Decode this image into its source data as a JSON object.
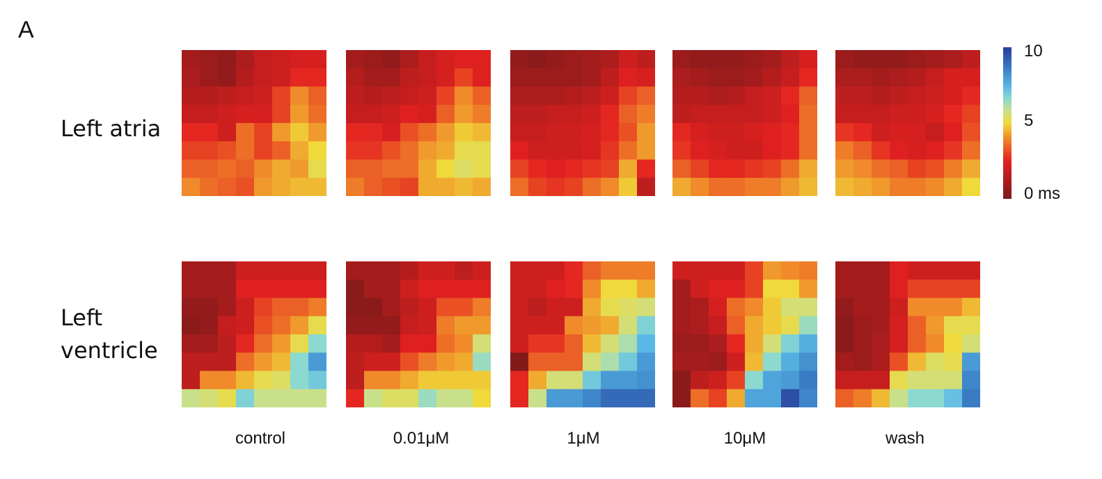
{
  "panel_label": "A",
  "chart_data": {
    "type": "heatmap",
    "title": "",
    "rows": [
      "Left atria",
      "Left ventricle"
    ],
    "columns": [
      "control",
      "0.01μM",
      "1μM",
      "10μM",
      "wash"
    ],
    "colorbar": {
      "min": 0,
      "mid": 5,
      "max": 10,
      "min_label": "0 ms",
      "mid_label": "5",
      "max_label": "10",
      "unit": "ms",
      "colors": [
        "#7a1a1a",
        "#e32020",
        "#f08a2a",
        "#f0d93a",
        "#c9e08a",
        "#8cd9d0",
        "#5ab8e6",
        "#3a7cc4",
        "#2a3d9a"
      ]
    },
    "grids": [
      [
        [
          [
            1,
            0.8,
            0.6,
            1.2,
            1.8,
            2,
            2.2,
            2.2
          ],
          [
            1.2,
            0.8,
            0.6,
            1.4,
            1.8,
            2,
            2.6,
            2.6
          ],
          [
            1.4,
            1.4,
            1.6,
            1.8,
            2,
            3,
            4,
            3.4
          ],
          [
            1.8,
            1.8,
            2,
            2.2,
            2.2,
            3,
            4.2,
            3.6
          ],
          [
            2.6,
            2.6,
            2,
            3.6,
            3,
            4.2,
            4.8,
            4.2
          ],
          [
            3,
            3,
            3.2,
            3.6,
            3,
            3.4,
            4.4,
            5
          ],
          [
            3.4,
            3.4,
            3.6,
            3.4,
            4,
            4.4,
            4.2,
            5.2
          ],
          [
            4,
            3.6,
            3.4,
            3.2,
            4.2,
            4.4,
            4.6,
            4.6
          ]
        ],
        [
          [
            1,
            0.8,
            0.6,
            1.2,
            1.8,
            2.2,
            2.4,
            2.4
          ],
          [
            1.4,
            1,
            1,
            1.6,
            1.8,
            2.2,
            3,
            2.4
          ],
          [
            1.6,
            1.4,
            1.6,
            1.8,
            2,
            3,
            4,
            3.4
          ],
          [
            1.8,
            1.8,
            2,
            2.4,
            2.2,
            3.4,
            4.2,
            3.8
          ],
          [
            2.6,
            2.6,
            2.2,
            3.2,
            3.6,
            4.2,
            4.8,
            4.6
          ],
          [
            2.8,
            2.8,
            3.2,
            3.6,
            4.2,
            4.4,
            5.2,
            5.2
          ],
          [
            3.4,
            3.4,
            3.6,
            3.6,
            4.4,
            5,
            5.4,
            5.2
          ],
          [
            3.8,
            3.4,
            3.2,
            3,
            4.4,
            4.4,
            4.6,
            4.4
          ]
        ],
        [
          [
            0.6,
            0.4,
            0.6,
            0.8,
            1,
            1.2,
            2,
            1.6
          ],
          [
            0.8,
            0.8,
            0.8,
            0.8,
            1,
            1.6,
            2.4,
            2.2
          ],
          [
            1.2,
            1.2,
            1.2,
            1.4,
            1.6,
            2,
            3,
            3.4
          ],
          [
            1.6,
            1.6,
            1.8,
            1.8,
            2,
            2.6,
            3.4,
            3.8
          ],
          [
            1.8,
            1.8,
            2,
            2,
            2.2,
            2.6,
            3.2,
            4.2
          ],
          [
            2.4,
            2,
            2,
            2,
            2.2,
            2.8,
            3.6,
            4.2
          ],
          [
            3,
            2.6,
            2.4,
            2.6,
            2.8,
            3,
            4.4,
            2.6
          ],
          [
            3.6,
            3,
            2.8,
            3,
            3.6,
            4,
            4.8,
            1.6
          ]
        ],
        [
          [
            0.8,
            0.6,
            0.6,
            0.6,
            0.8,
            1,
            1.6,
            2.2
          ],
          [
            1.2,
            1,
            0.8,
            0.8,
            1,
            1.4,
            1.8,
            2.6
          ],
          [
            1.4,
            1.4,
            1.2,
            1.4,
            1.8,
            2,
            2.6,
            3.4
          ],
          [
            1.6,
            1.8,
            1.8,
            1.8,
            1.8,
            2,
            2.4,
            3.6
          ],
          [
            2.6,
            2.2,
            2,
            2,
            2.2,
            2.4,
            2.6,
            3.6
          ],
          [
            2.8,
            2.4,
            2.2,
            2,
            2,
            2.4,
            2.6,
            3.6
          ],
          [
            3.4,
            3,
            2.6,
            2.6,
            2.8,
            3,
            3.6,
            4.4
          ],
          [
            4.4,
            4,
            3.6,
            3.6,
            3.8,
            3.8,
            4.2,
            4.6
          ]
        ],
        [
          [
            0.8,
            0.6,
            0.6,
            0.6,
            0.8,
            1,
            1.2,
            1.6
          ],
          [
            1.2,
            1.2,
            1,
            1.2,
            1.4,
            1.8,
            2.2,
            2.2
          ],
          [
            1.6,
            1.6,
            1.4,
            1.6,
            1.8,
            2,
            2.2,
            2.6
          ],
          [
            1.8,
            1.8,
            1.8,
            2,
            2,
            2.2,
            2.6,
            3
          ],
          [
            2.8,
            2.6,
            2,
            2.2,
            2.2,
            1.8,
            2.4,
            3.2
          ],
          [
            3.8,
            3.4,
            2.8,
            2.4,
            2.2,
            2.4,
            2.8,
            3.6
          ],
          [
            4.2,
            4,
            3.6,
            3.4,
            3,
            3.2,
            3.8,
            4.4
          ],
          [
            4.6,
            4.4,
            4.2,
            3.8,
            3.8,
            4,
            4.4,
            5
          ]
        ]
      ],
      [
        [
          [
            1,
            1,
            1,
            2,
            2,
            2,
            2,
            2
          ],
          [
            1,
            1,
            1,
            2.4,
            2.4,
            2.4,
            2.4,
            2.4
          ],
          [
            0.6,
            0.6,
            1,
            2,
            3,
            3.4,
            3.4,
            3.8
          ],
          [
            0.4,
            0.6,
            1.8,
            2,
            3.2,
            3.6,
            4.2,
            5.2
          ],
          [
            1,
            1,
            1.6,
            2.6,
            3.6,
            4.2,
            5.2,
            6.6
          ],
          [
            1.6,
            1.6,
            1.6,
            3.6,
            4.2,
            4.6,
            6.6,
            8
          ],
          [
            1.6,
            4,
            4,
            4.6,
            5.2,
            5.4,
            6.6,
            7
          ],
          [
            5.8,
            5.6,
            5.2,
            6.8,
            5.8,
            5.8,
            5.8,
            5.8
          ]
        ],
        [
          [
            1,
            1,
            1,
            1.4,
            2,
            2,
            1.6,
            2
          ],
          [
            0.4,
            1,
            1,
            2,
            2.4,
            2.4,
            2.4,
            2.4
          ],
          [
            0.4,
            0.4,
            1,
            1.6,
            2,
            3.2,
            3.2,
            3.8
          ],
          [
            0.6,
            0.6,
            0.6,
            1.8,
            2,
            3.8,
            4.2,
            4.2
          ],
          [
            1.4,
            1.4,
            1,
            2.4,
            2.4,
            3.6,
            4,
            5.6
          ],
          [
            1.6,
            2,
            2,
            3.2,
            3.8,
            4.2,
            4.4,
            6.4
          ],
          [
            1.6,
            4,
            4,
            4.4,
            4.8,
            4.8,
            4.8,
            4.8
          ],
          [
            2.6,
            5.8,
            5.4,
            5.4,
            6.4,
            5.8,
            5.8,
            5
          ]
        ],
        [
          [
            2,
            2,
            2,
            2.6,
            3.4,
            3.8,
            3.8,
            3.8
          ],
          [
            2,
            2,
            2.4,
            2.6,
            4,
            5,
            5,
            4.4
          ],
          [
            2,
            1.6,
            2,
            2,
            4.4,
            5.2,
            5.4,
            5.6
          ],
          [
            2,
            2,
            2,
            4,
            4.2,
            4.4,
            5.6,
            6.8
          ],
          [
            2,
            2.8,
            2.8,
            3.4,
            4.6,
            5.6,
            6.2,
            7.4
          ],
          [
            0.2,
            3.4,
            3.4,
            3.4,
            5.6,
            6.2,
            7,
            8
          ],
          [
            2.6,
            4.4,
            5.6,
            5.6,
            7,
            8,
            8,
            8.2
          ],
          [
            2.6,
            5.8,
            8,
            8,
            8.4,
            9,
            9,
            9
          ]
        ],
        [
          [
            2,
            2,
            2,
            2,
            3,
            4.2,
            4,
            3.8
          ],
          [
            1,
            2,
            2.4,
            2.4,
            3,
            5,
            5,
            4.2
          ],
          [
            1,
            1.2,
            2.2,
            3.6,
            4,
            4.8,
            5.6,
            5.6
          ],
          [
            1,
            1.2,
            1.8,
            3.4,
            4.4,
            4.8,
            5.2,
            6.4
          ],
          [
            0.8,
            0.8,
            1.2,
            2.6,
            4.4,
            5.6,
            6.8,
            7.6
          ],
          [
            1,
            1,
            0.8,
            2,
            4.6,
            6.6,
            7.6,
            8.2
          ],
          [
            0.4,
            1.6,
            2,
            3,
            6.6,
            7.8,
            8,
            8.6
          ],
          [
            0.4,
            3.6,
            3,
            4.4,
            7.8,
            7.8,
            9.6,
            8.4
          ]
        ],
        [
          [
            1,
            1,
            1,
            2.4,
            2,
            2,
            2,
            2
          ],
          [
            1,
            1,
            1,
            2.4,
            3,
            3,
            3,
            3
          ],
          [
            0.6,
            1,
            1,
            2,
            4,
            4,
            4,
            4.6
          ],
          [
            0.4,
            0.8,
            1,
            2.2,
            3.4,
            4.2,
            5.2,
            5.2
          ],
          [
            0.4,
            0.8,
            1.2,
            2.2,
            3.4,
            4,
            5,
            5.6
          ],
          [
            1,
            0.8,
            1.2,
            3.2,
            4.6,
            5.4,
            5.2,
            8
          ],
          [
            1.8,
            1.8,
            1.8,
            5.2,
            5.6,
            5.6,
            5.6,
            8.4
          ],
          [
            3.4,
            3.8,
            4.6,
            5.8,
            6.6,
            6.6,
            7.2,
            8.6
          ]
        ]
      ]
    ]
  }
}
